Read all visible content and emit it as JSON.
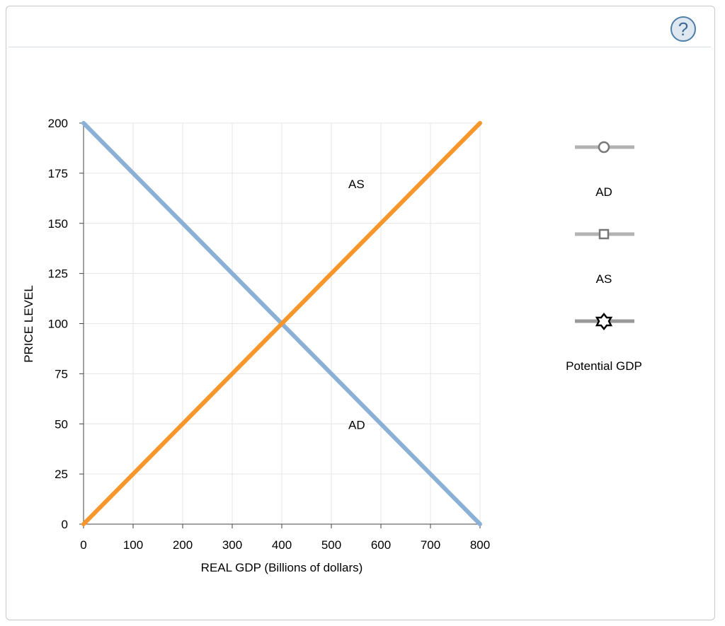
{
  "help_button": {
    "label": "?"
  },
  "chart_data": {
    "type": "line",
    "xlabel": "REAL GDP (Billions of dollars)",
    "ylabel": "PRICE LEVEL",
    "xlim": [
      0,
      800
    ],
    "ylim": [
      0,
      200
    ],
    "xticks": [
      0,
      100,
      200,
      300,
      400,
      500,
      600,
      700,
      800
    ],
    "yticks": [
      0,
      25,
      50,
      75,
      100,
      125,
      150,
      175,
      200
    ],
    "grid": true,
    "series": [
      {
        "name": "AD",
        "color": "#8bb0d6",
        "x": [
          0,
          800
        ],
        "y": [
          200,
          0
        ],
        "label_at": [
          630,
          50
        ]
      },
      {
        "name": "AS",
        "color": "#f7962a",
        "x": [
          0,
          800
        ],
        "y": [
          0,
          200
        ],
        "label_at": [
          630,
          170
        ]
      }
    ]
  },
  "legend_tools": [
    {
      "label": "AD",
      "marker": "circle"
    },
    {
      "label": "AS",
      "marker": "square"
    },
    {
      "label": "Potential GDP",
      "marker": "star"
    }
  ]
}
